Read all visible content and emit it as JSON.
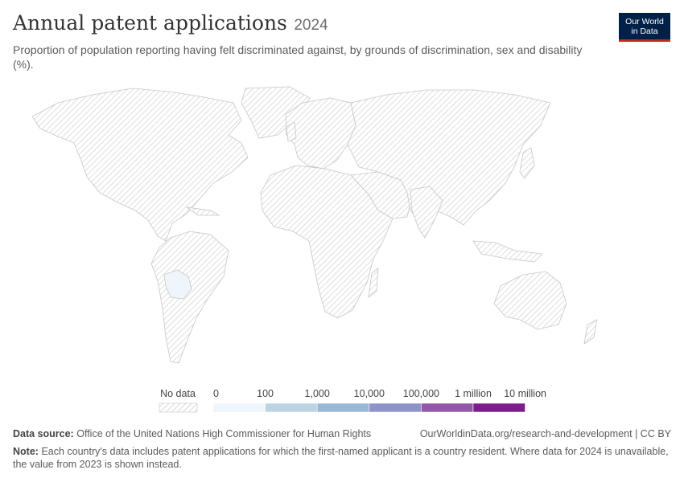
{
  "header": {
    "title": "Annual patent applications",
    "year": "2024",
    "subtitle": "Proportion of population reporting having felt discriminated against, by grounds of discrimination, sex and disability (%)."
  },
  "logo": {
    "line1": "Our World",
    "line2": "in Data"
  },
  "legend": {
    "no_data_label": "No data",
    "bins": [
      {
        "label": "0",
        "color": "#eef6fb"
      },
      {
        "label": "100",
        "color": "#bcd3e4"
      },
      {
        "label": "1,000",
        "color": "#9ab7d6"
      },
      {
        "label": "10,000",
        "color": "#8f94c8"
      },
      {
        "label": "100,000",
        "color": "#9359a8"
      },
      {
        "label": "1 million",
        "color": "#7d1c8c"
      },
      {
        "label": "10 million",
        "color": ""
      }
    ]
  },
  "map": {
    "highlighted_country": "Bolivia",
    "highlighted_color": "#eef6fb",
    "no_data_pattern_color": "#cfcfcf"
  },
  "footer": {
    "source_label": "Data source:",
    "source_text": "Office of the United Nations High Commissioner for Human Rights",
    "url": "OurWorldinData.org/research-and-development | CC BY",
    "note_label": "Note:",
    "note_text": "Each country's data includes patent applications for which the first-named applicant is a country resident. Where data for 2024 is unavailable, the value from 2023 is shown instead."
  }
}
